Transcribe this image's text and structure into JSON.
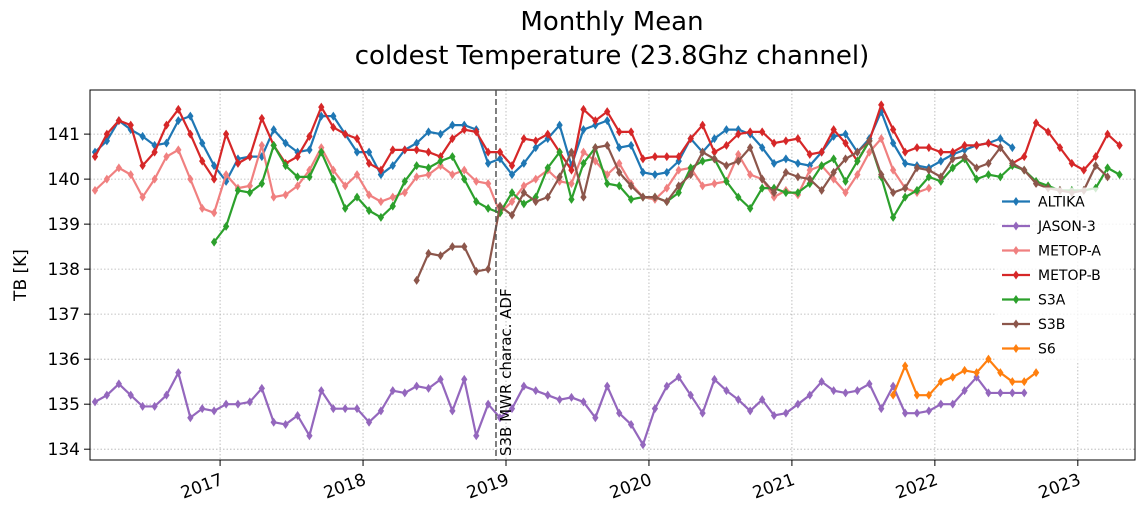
{
  "chart_data": {
    "type": "line",
    "title": [
      "Monthly Mean",
      "coldest Temperature (23.8Ghz channel)"
    ],
    "y_label": "TB [K]",
    "x": [
      2016.125,
      2016.208,
      2016.292,
      2016.375,
      2016.458,
      2016.542,
      2016.625,
      2016.708,
      2016.792,
      2016.875,
      2016.958,
      2017.042,
      2017.125,
      2017.208,
      2017.292,
      2017.375,
      2017.458,
      2017.542,
      2017.625,
      2017.708,
      2017.792,
      2017.875,
      2017.958,
      2018.042,
      2018.125,
      2018.208,
      2018.292,
      2018.375,
      2018.458,
      2018.542,
      2018.625,
      2018.708,
      2018.792,
      2018.875,
      2018.958,
      2019.042,
      2019.125,
      2019.208,
      2019.292,
      2019.375,
      2019.458,
      2019.542,
      2019.625,
      2019.708,
      2019.792,
      2019.875,
      2019.958,
      2020.042,
      2020.125,
      2020.208,
      2020.292,
      2020.375,
      2020.458,
      2020.542,
      2020.625,
      2020.708,
      2020.792,
      2020.875,
      2020.958,
      2021.042,
      2021.125,
      2021.208,
      2021.292,
      2021.375,
      2021.458,
      2021.542,
      2021.625,
      2021.708,
      2021.792,
      2021.875,
      2021.958,
      2022.042,
      2022.125,
      2022.208,
      2022.292,
      2022.375,
      2022.458,
      2022.542,
      2022.625,
      2022.708,
      2022.792,
      2022.875,
      2022.958,
      2023.042,
      2023.125,
      2023.208,
      2023.292,
      2023.375
    ],
    "series": [
      {
        "name": "ALTIKA",
        "color": "#1f77b4",
        "values": [
          140.6,
          140.85,
          141.3,
          141.1,
          140.95,
          140.75,
          140.8,
          141.3,
          141.4,
          140.8,
          140.3,
          139.95,
          140.45,
          140.5,
          140.5,
          141.1,
          140.8,
          140.6,
          140.65,
          141.4,
          141.4,
          141.0,
          140.6,
          140.6,
          140.1,
          140.3,
          140.65,
          140.8,
          141.05,
          141.0,
          141.2,
          141.2,
          141.1,
          140.35,
          140.45,
          140.1,
          140.35,
          140.7,
          140.9,
          141.2,
          140.3,
          141.1,
          141.2,
          141.3,
          140.7,
          140.75,
          140.15,
          140.1,
          140.15,
          140.4,
          140.9,
          140.6,
          140.9,
          141.1,
          141.1,
          141.0,
          140.7,
          140.35,
          140.45,
          140.35,
          140.3,
          140.6,
          140.95,
          141.0,
          140.6,
          140.9,
          141.5,
          140.8,
          140.35,
          140.3,
          140.25,
          140.4,
          140.55,
          140.65,
          140.75,
          140.8,
          140.9,
          140.7,
          null,
          null,
          null,
          null,
          null,
          null,
          null,
          null,
          null,
          null
        ]
      },
      {
        "name": "JASON-3",
        "color": "#9467bd",
        "values": [
          135.05,
          135.2,
          135.45,
          135.2,
          134.95,
          134.95,
          135.2,
          135.7,
          134.7,
          134.9,
          134.85,
          135.0,
          135.0,
          135.05,
          135.35,
          134.6,
          134.55,
          134.75,
          134.3,
          135.3,
          134.9,
          134.9,
          134.9,
          134.6,
          134.85,
          135.3,
          135.25,
          135.4,
          135.35,
          135.55,
          134.85,
          135.55,
          134.3,
          135.0,
          134.7,
          134.9,
          135.4,
          135.3,
          135.2,
          135.1,
          135.15,
          135.05,
          134.7,
          135.4,
          134.8,
          134.55,
          134.1,
          134.9,
          135.4,
          135.6,
          135.2,
          134.8,
          135.55,
          135.3,
          135.1,
          134.85,
          135.1,
          134.75,
          134.8,
          135.0,
          135.2,
          135.5,
          135.3,
          135.25,
          135.3,
          135.45,
          134.9,
          135.4,
          134.8,
          134.8,
          134.85,
          135.0,
          135.0,
          135.3,
          135.6,
          135.25,
          135.25,
          135.25,
          135.25,
          null,
          null,
          null,
          null,
          null,
          null,
          null,
          null,
          null
        ]
      },
      {
        "name": "METOP-A",
        "color": "#f08080",
        "values": [
          139.75,
          140.0,
          140.25,
          140.1,
          139.6,
          140.0,
          140.5,
          140.65,
          140.0,
          139.35,
          139.25,
          140.1,
          139.8,
          139.85,
          140.75,
          139.6,
          139.65,
          139.85,
          140.2,
          140.7,
          140.2,
          139.85,
          140.1,
          139.65,
          139.5,
          139.6,
          139.7,
          140.05,
          140.1,
          140.3,
          140.1,
          140.2,
          139.95,
          139.9,
          139.25,
          139.5,
          139.85,
          140.0,
          140.2,
          139.95,
          139.9,
          140.6,
          140.4,
          140.1,
          140.35,
          139.9,
          139.6,
          139.55,
          139.8,
          140.2,
          140.25,
          139.85,
          139.9,
          139.95,
          140.55,
          140.1,
          140.0,
          139.6,
          139.75,
          139.65,
          140.2,
          140.3,
          140.0,
          139.7,
          140.1,
          140.6,
          140.9,
          140.2,
          139.8,
          139.7,
          139.8,
          null,
          null,
          null,
          null,
          null,
          null,
          null,
          null,
          null,
          null,
          null,
          null,
          null,
          null,
          null,
          null,
          null
        ]
      },
      {
        "name": "METOP-B",
        "color": "#d62728",
        "values": [
          140.5,
          141.0,
          141.3,
          141.2,
          140.3,
          140.6,
          141.2,
          141.55,
          141.0,
          140.4,
          140.0,
          141.0,
          140.35,
          140.5,
          141.35,
          140.75,
          140.35,
          140.5,
          140.95,
          141.6,
          141.15,
          141.0,
          140.9,
          140.35,
          140.2,
          140.65,
          140.65,
          140.65,
          140.6,
          140.5,
          140.9,
          141.1,
          141.05,
          140.6,
          140.6,
          140.3,
          140.9,
          140.85,
          141.0,
          140.6,
          140.2,
          141.55,
          141.3,
          141.5,
          141.05,
          141.05,
          140.45,
          140.5,
          140.5,
          140.5,
          140.9,
          141.2,
          140.6,
          140.75,
          141.0,
          141.05,
          141.05,
          140.8,
          140.85,
          140.9,
          140.55,
          140.6,
          141.1,
          140.8,
          140.4,
          140.85,
          141.65,
          141.1,
          140.6,
          140.7,
          140.7,
          140.6,
          140.6,
          140.75,
          140.75,
          140.8,
          140.7,
          140.35,
          140.5,
          141.25,
          141.05,
          140.7,
          140.35,
          140.2,
          140.5,
          141.0,
          140.75,
          null
        ]
      },
      {
        "name": "S3A",
        "color": "#2ca02c",
        "values": [
          null,
          null,
          null,
          null,
          null,
          null,
          null,
          null,
          null,
          null,
          138.6,
          138.95,
          139.75,
          139.7,
          139.9,
          140.75,
          140.3,
          140.05,
          140.05,
          140.6,
          140.0,
          139.35,
          139.6,
          139.3,
          139.15,
          139.4,
          139.95,
          140.3,
          140.25,
          140.4,
          140.5,
          140.0,
          139.5,
          139.35,
          139.25,
          139.7,
          139.45,
          139.6,
          140.25,
          140.6,
          139.55,
          140.35,
          140.7,
          139.9,
          139.85,
          139.55,
          139.6,
          139.6,
          139.5,
          139.7,
          140.25,
          140.4,
          140.45,
          139.95,
          139.6,
          139.35,
          139.8,
          139.8,
          139.7,
          139.7,
          139.9,
          140.3,
          140.45,
          139.95,
          140.4,
          140.85,
          140.05,
          139.15,
          139.6,
          139.75,
          140.05,
          139.95,
          140.25,
          140.45,
          140.0,
          140.1,
          140.05,
          140.3,
          140.2,
          139.95,
          139.85,
          139.75,
          139.75,
          139.75,
          139.8,
          140.25,
          140.1,
          null
        ]
      },
      {
        "name": "S3B",
        "color": "#8c564b",
        "values": [
          null,
          null,
          null,
          null,
          null,
          null,
          null,
          null,
          null,
          null,
          null,
          null,
          null,
          null,
          null,
          null,
          null,
          null,
          null,
          null,
          null,
          null,
          null,
          null,
          null,
          null,
          null,
          137.75,
          138.35,
          138.3,
          138.5,
          138.5,
          137.95,
          138.0,
          139.4,
          139.2,
          139.7,
          139.5,
          139.6,
          140.05,
          140.6,
          139.6,
          140.7,
          140.75,
          140.15,
          139.85,
          139.6,
          139.6,
          139.5,
          139.85,
          140.1,
          140.6,
          140.45,
          140.3,
          140.4,
          140.7,
          140.0,
          139.7,
          140.15,
          140.05,
          140.0,
          139.75,
          140.15,
          140.45,
          140.6,
          140.85,
          140.1,
          139.7,
          139.8,
          140.25,
          140.2,
          140.05,
          140.45,
          140.5,
          140.25,
          140.35,
          140.7,
          140.35,
          140.2,
          139.9,
          139.8,
          139.75,
          139.7,
          139.75,
          140.3,
          140.05,
          null,
          null
        ]
      },
      {
        "name": "S6",
        "color": "#ff7f0e",
        "values": [
          null,
          null,
          null,
          null,
          null,
          null,
          null,
          null,
          null,
          null,
          null,
          null,
          null,
          null,
          null,
          null,
          null,
          null,
          null,
          null,
          null,
          null,
          null,
          null,
          null,
          null,
          null,
          null,
          null,
          null,
          null,
          null,
          null,
          null,
          null,
          null,
          null,
          null,
          null,
          null,
          null,
          null,
          null,
          null,
          null,
          null,
          null,
          null,
          null,
          null,
          null,
          null,
          null,
          null,
          null,
          null,
          null,
          null,
          null,
          null,
          null,
          null,
          null,
          null,
          null,
          null,
          null,
          135.2,
          135.85,
          135.2,
          135.2,
          135.5,
          135.6,
          135.75,
          135.7,
          136.0,
          135.7,
          135.5,
          135.5,
          135.7,
          null,
          null,
          null,
          null,
          null,
          null,
          null,
          null
        ]
      }
    ],
    "xlim": [
      2016.09,
      2023.4
    ],
    "xticks": [
      2017,
      2018,
      2019,
      2020,
      2021,
      2022,
      2023
    ],
    "ylim": [
      133.76,
      141.98
    ],
    "yticks": [
      134,
      135,
      136,
      137,
      138,
      139,
      140,
      141
    ],
    "grid": true,
    "legend": "center right",
    "vline": {
      "x": 2018.93,
      "label": "S3B MWR charac. ADF"
    }
  }
}
